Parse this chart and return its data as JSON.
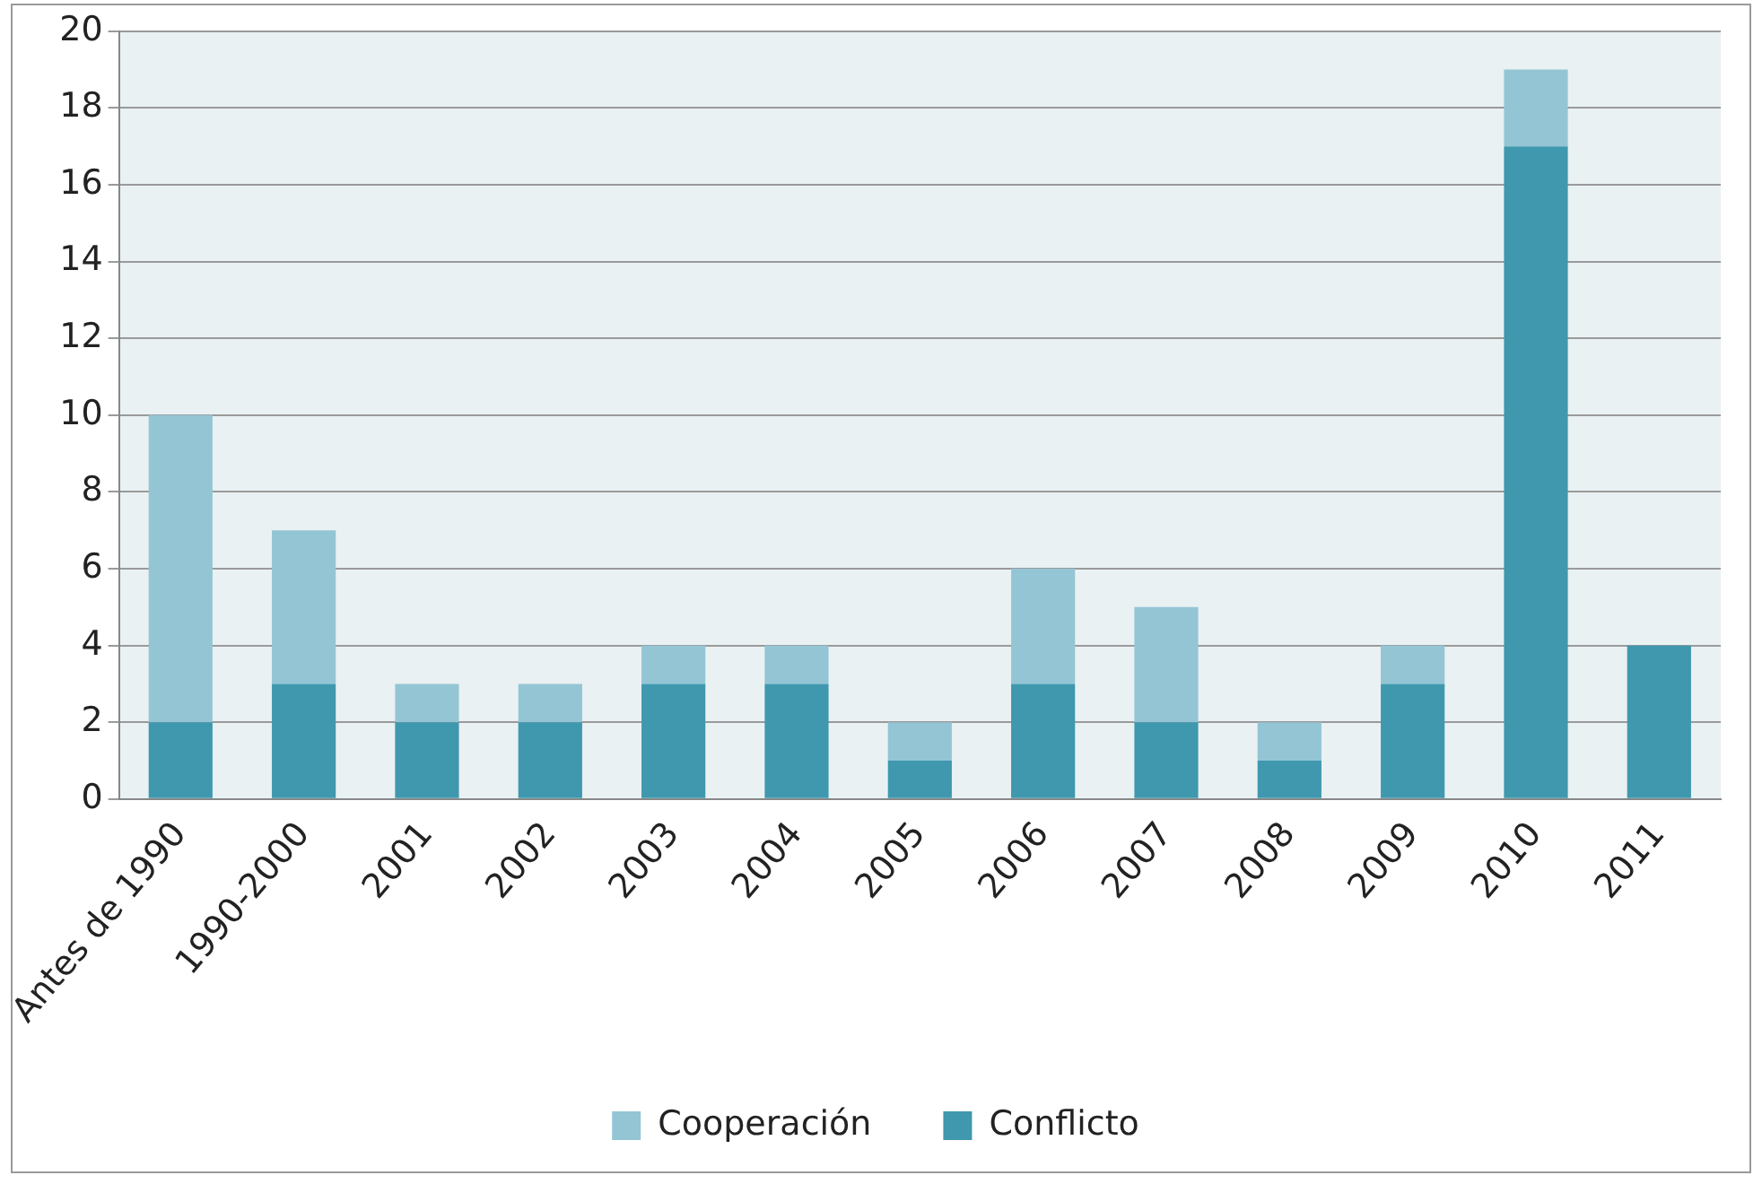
{
  "chart_data": {
    "type": "bar",
    "stacked": true,
    "categories": [
      "Antes de 1990",
      "1990-2000",
      "2001",
      "2002",
      "2003",
      "2004",
      "2005",
      "2006",
      "2007",
      "2008",
      "2009",
      "2010",
      "2011"
    ],
    "series": [
      {
        "name": "Conflicto",
        "color": "#3f98ae",
        "values": [
          2,
          3,
          2,
          2,
          3,
          3,
          1,
          3,
          2,
          1,
          3,
          17,
          4
        ]
      },
      {
        "name": "Cooperación",
        "color": "#94c5d5",
        "values": [
          8,
          4,
          1,
          1,
          1,
          1,
          1,
          3,
          3,
          1,
          1,
          2,
          0
        ]
      }
    ],
    "ylim": [
      0,
      20
    ],
    "yticks": [
      0,
      2,
      4,
      6,
      8,
      10,
      12,
      14,
      16,
      18,
      20
    ],
    "grid": "y",
    "legend": "bottom"
  }
}
